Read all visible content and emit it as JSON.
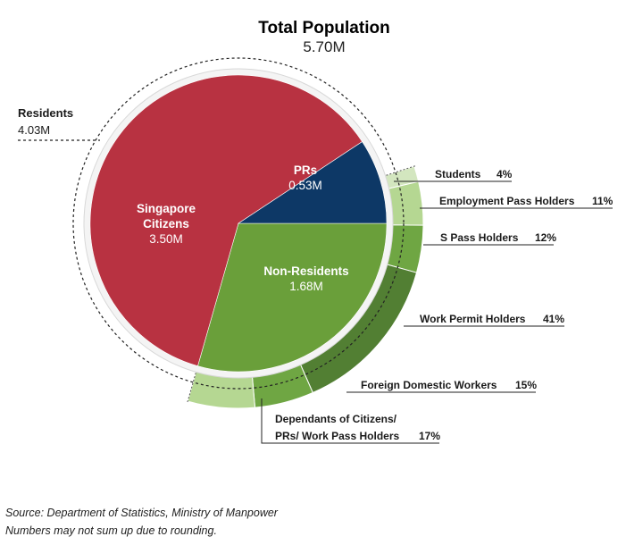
{
  "chart_data": {
    "type": "pie",
    "title": "Total Population",
    "subtitle": "5.70M",
    "inner_slices": [
      {
        "key": "citizens",
        "label_lines": [
          "Singapore",
          "Citizens"
        ],
        "value_label": "3.50M",
        "value": 3.5,
        "color": "#b83241"
      },
      {
        "key": "prs",
        "label_lines": [
          "PRs"
        ],
        "value_label": "0.53M",
        "value": 0.53,
        "color": "#0d3866"
      },
      {
        "key": "nonres",
        "label_lines": [
          "Non-Residents"
        ],
        "value_label": "1.68M",
        "value": 1.68,
        "color": "#6a9f3a"
      }
    ],
    "residents": {
      "label": "Residents",
      "value_label": "4.03M"
    },
    "non_resident_breakdown": [
      {
        "key": "students",
        "label": "Students",
        "percent_label": "4%",
        "percent": 4,
        "color": "#d3e6bf"
      },
      {
        "key": "ep",
        "label": "Employment Pass Holders",
        "percent_label": "11%",
        "percent": 11,
        "color": "#b5d792"
      },
      {
        "key": "spass",
        "label": "S Pass Holders",
        "percent_label": "12%",
        "percent": 12,
        "color": "#6fa643"
      },
      {
        "key": "wp",
        "label": "Work Permit Holders",
        "percent_label": "41%",
        "percent": 41,
        "color": "#527f33"
      },
      {
        "key": "fdw",
        "label": "Foreign Domestic Workers",
        "percent_label": "15%",
        "percent": 15,
        "color": "#6fa643"
      },
      {
        "key": "dep",
        "label_lines": [
          "Dependants of Citizens/",
          "PRs/ Work Pass Holders"
        ],
        "percent_label": "17%",
        "percent": 17,
        "color": "#b5d792"
      }
    ]
  },
  "footnotes": {
    "source": "Source: Department of Statistics, Ministry of Manpower",
    "rounding": "Numbers may not sum up due to rounding."
  }
}
